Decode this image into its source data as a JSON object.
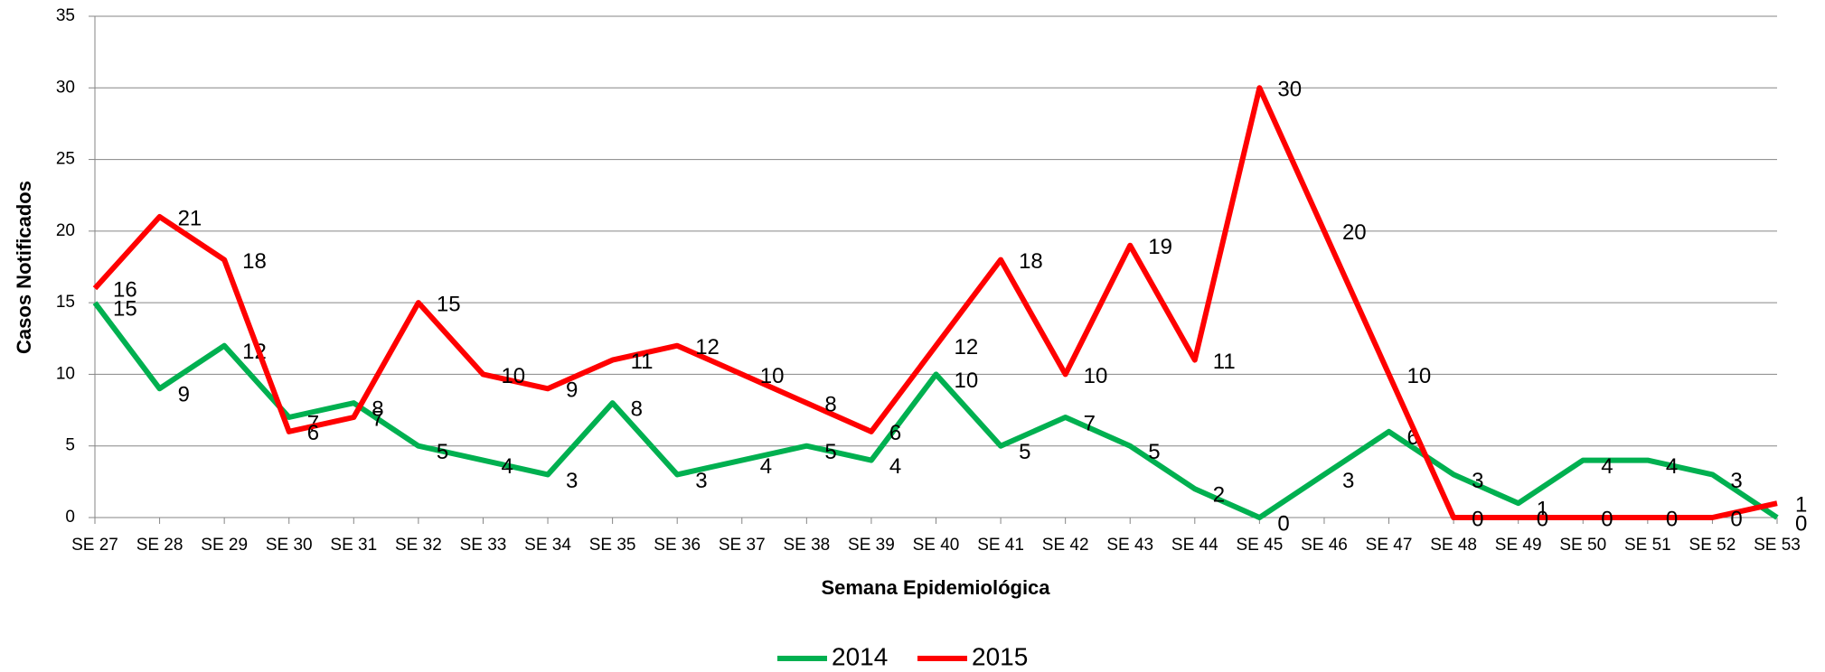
{
  "chart_data": {
    "type": "line",
    "x_label": "Semana Epidemiológica",
    "y_label": "Casos Notificados",
    "categories": [
      "SE 27",
      "SE 28",
      "SE 29",
      "SE 30",
      "SE 31",
      "SE 32",
      "SE 33",
      "SE 34",
      "SE 35",
      "SE 36",
      "SE 37",
      "SE 38",
      "SE 39",
      "SE 40",
      "SE 41",
      "SE 42",
      "SE 43",
      "SE 44",
      "SE 45",
      "SE 46",
      "SE 47",
      "SE 48",
      "SE 49",
      "SE 50",
      "SE 51",
      "SE 52",
      "SE 53"
    ],
    "series": [
      {
        "name": "2014",
        "color": "#00b050",
        "values": [
          15,
          9,
          12,
          7,
          8,
          5,
          4,
          3,
          8,
          3,
          4,
          5,
          4,
          10,
          5,
          7,
          5,
          2,
          0,
          3,
          6,
          3,
          1,
          4,
          4,
          3,
          0
        ]
      },
      {
        "name": "2015",
        "color": "#ff0000",
        "values": [
          16,
          21,
          18,
          6,
          7,
          15,
          10,
          9,
          11,
          12,
          10,
          8,
          6,
          12,
          18,
          10,
          19,
          11,
          30,
          20,
          10,
          0,
          0,
          0,
          0,
          0,
          1
        ]
      }
    ],
    "ylim": [
      0,
      35
    ],
    "yticks": [
      0,
      5,
      10,
      15,
      20,
      25,
      30,
      35
    ],
    "grid": true,
    "legend": "bottom"
  }
}
